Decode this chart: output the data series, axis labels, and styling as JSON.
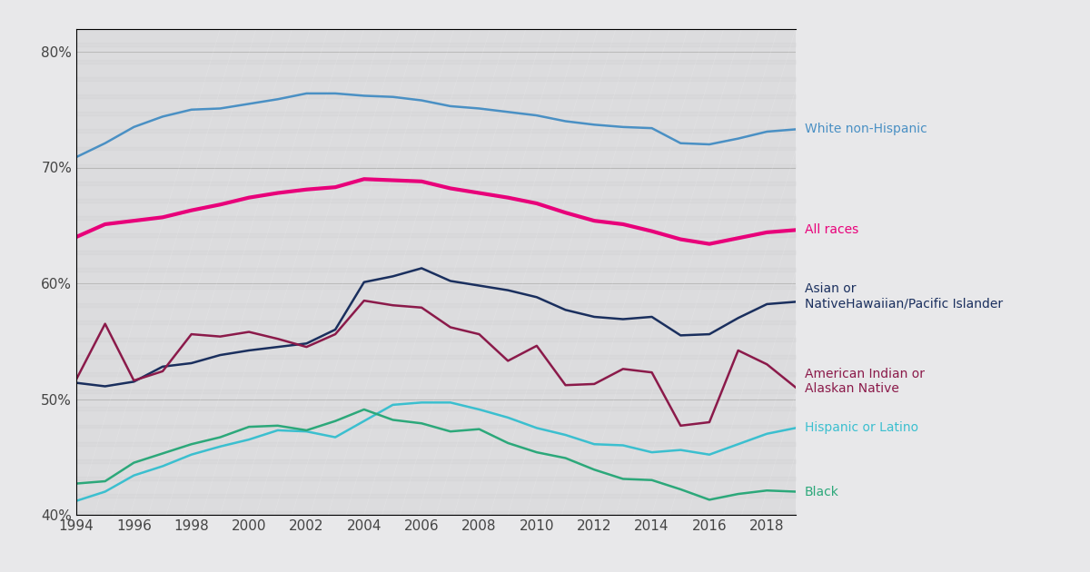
{
  "years": [
    1994,
    1995,
    1996,
    1997,
    1998,
    1999,
    2000,
    2001,
    2002,
    2003,
    2004,
    2005,
    2006,
    2007,
    2008,
    2009,
    2010,
    2011,
    2012,
    2013,
    2014,
    2015,
    2016,
    2017,
    2018,
    2019
  ],
  "white_non_hispanic": [
    70.9,
    72.1,
    73.5,
    74.4,
    75.0,
    75.1,
    75.5,
    75.9,
    76.4,
    76.4,
    76.2,
    76.1,
    75.8,
    75.3,
    75.1,
    74.8,
    74.5,
    74.0,
    73.7,
    73.5,
    73.4,
    72.1,
    72.0,
    72.5,
    73.1,
    73.3
  ],
  "all_races": [
    64.0,
    65.1,
    65.4,
    65.7,
    66.3,
    66.8,
    67.4,
    67.8,
    68.1,
    68.3,
    69.0,
    68.9,
    68.8,
    68.2,
    67.8,
    67.4,
    66.9,
    66.1,
    65.4,
    65.1,
    64.5,
    63.8,
    63.4,
    63.9,
    64.4,
    64.6
  ],
  "asian_pacific": [
    51.4,
    51.1,
    51.5,
    52.8,
    53.1,
    53.8,
    54.2,
    54.5,
    54.8,
    56.0,
    60.1,
    60.6,
    61.3,
    60.2,
    59.8,
    59.4,
    58.8,
    57.7,
    57.1,
    56.9,
    57.1,
    55.5,
    55.6,
    57.0,
    58.2,
    58.4
  ],
  "american_indian": [
    51.7,
    56.5,
    51.6,
    52.4,
    55.6,
    55.4,
    55.8,
    55.2,
    54.5,
    55.6,
    58.5,
    58.1,
    57.9,
    56.2,
    55.6,
    53.3,
    54.6,
    51.2,
    51.3,
    52.6,
    52.3,
    47.7,
    48.0,
    54.2,
    53.0,
    51.0
  ],
  "hispanic_latino": [
    41.2,
    42.0,
    43.4,
    44.2,
    45.2,
    45.9,
    46.5,
    47.3,
    47.2,
    46.7,
    48.1,
    49.5,
    49.7,
    49.7,
    49.1,
    48.4,
    47.5,
    46.9,
    46.1,
    46.0,
    45.4,
    45.6,
    45.2,
    46.1,
    47.0,
    47.5
  ],
  "black": [
    42.7,
    42.9,
    44.5,
    45.3,
    46.1,
    46.7,
    47.6,
    47.7,
    47.3,
    48.1,
    49.1,
    48.2,
    47.9,
    47.2,
    47.4,
    46.2,
    45.4,
    44.9,
    43.9,
    43.1,
    43.0,
    42.2,
    41.3,
    41.8,
    42.1,
    42.0
  ],
  "colors": {
    "white_non_hispanic": "#4a90c4",
    "all_races": "#e8007a",
    "asian_pacific": "#1a2f5e",
    "american_indian": "#8b1a4a",
    "hispanic_latino": "#3bbfcf",
    "black": "#2ca87a"
  },
  "line_widths": {
    "white_non_hispanic": 1.8,
    "all_races": 3.0,
    "asian_pacific": 1.8,
    "american_indian": 1.8,
    "hispanic_latino": 1.8,
    "black": 1.8
  },
  "ylim": [
    40,
    82
  ],
  "yticks": [
    40,
    50,
    60,
    70,
    80
  ],
  "background_color": "#e8e8ea",
  "plot_bg_color": "#dcdcde",
  "grid_color": "#bbbbbb"
}
